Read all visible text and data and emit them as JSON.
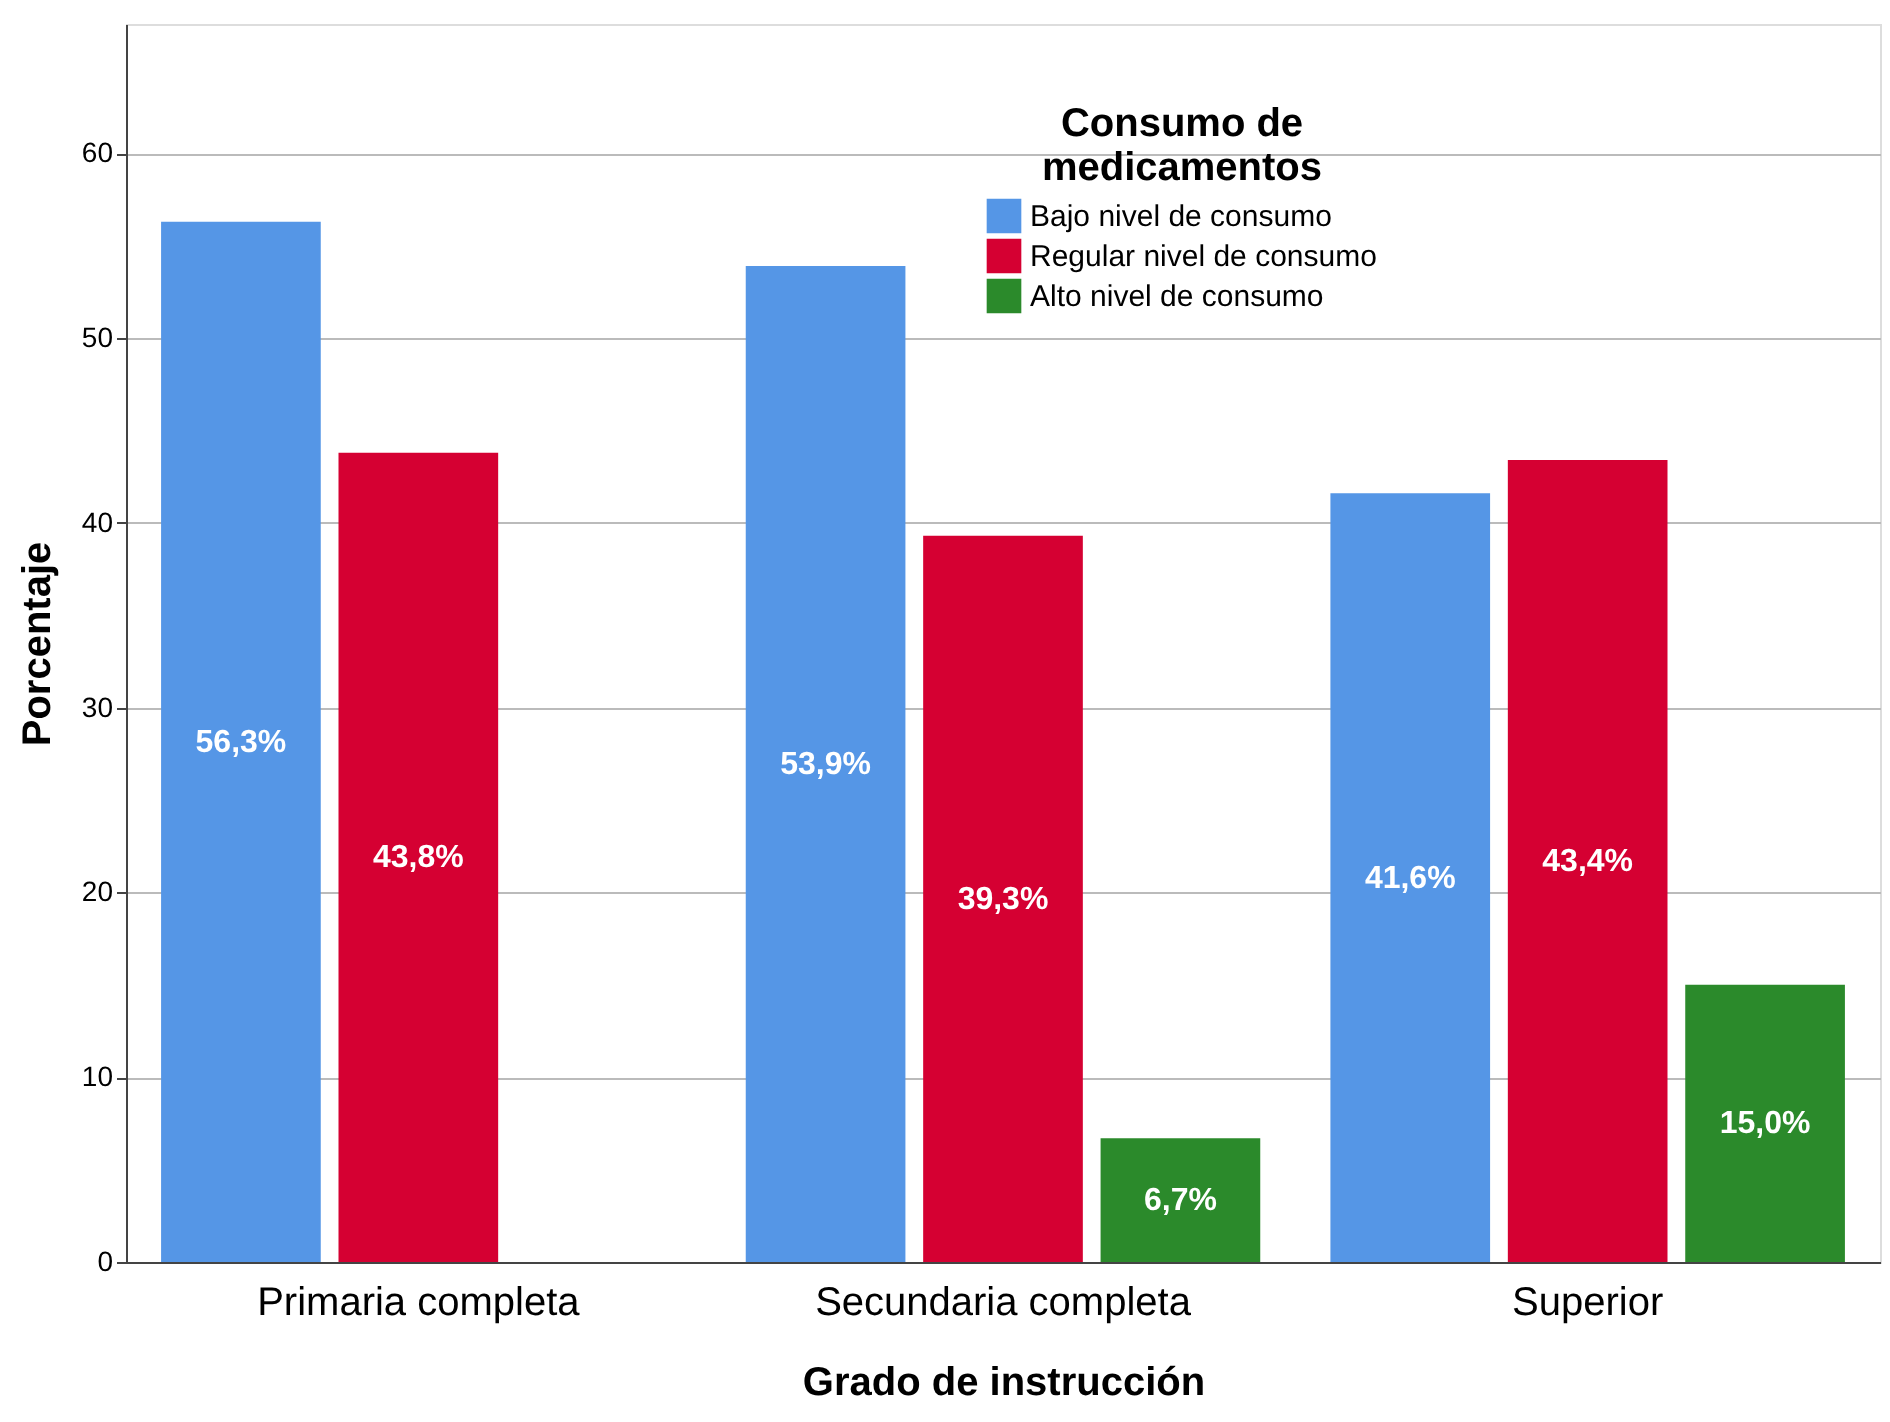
{
  "chart_data": {
    "type": "bar",
    "xlabel": "Grado de instrucción",
    "ylabel": "Porcentaje",
    "legend_title": "Consumo de\nmedicamentos",
    "categories": [
      "Primaria completa",
      "Secundaria completa",
      "Superior"
    ],
    "series": [
      {
        "name": "Bajo nivel de consumo",
        "color": "#5596e6",
        "values": [
          56.3,
          53.9,
          41.6
        ],
        "value_labels": [
          "56,3%",
          "53,9%",
          "41,6%"
        ]
      },
      {
        "name": "Regular nivel de consumo",
        "color": "#d50032",
        "values": [
          43.8,
          39.3,
          43.4
        ],
        "value_labels": [
          "43,8%",
          "39,3%",
          "43,4%"
        ]
      },
      {
        "name": "Alto nivel de consumo",
        "color": "#2b8a2b",
        "values": [
          null,
          6.7,
          15.0
        ],
        "value_labels": [
          null,
          "6,7%",
          "15,0%"
        ]
      }
    ],
    "ylim": [
      0,
      67
    ],
    "yticks": [
      0,
      10,
      20,
      30,
      40,
      50,
      60
    ],
    "grid": "y",
    "legend": "top right"
  }
}
